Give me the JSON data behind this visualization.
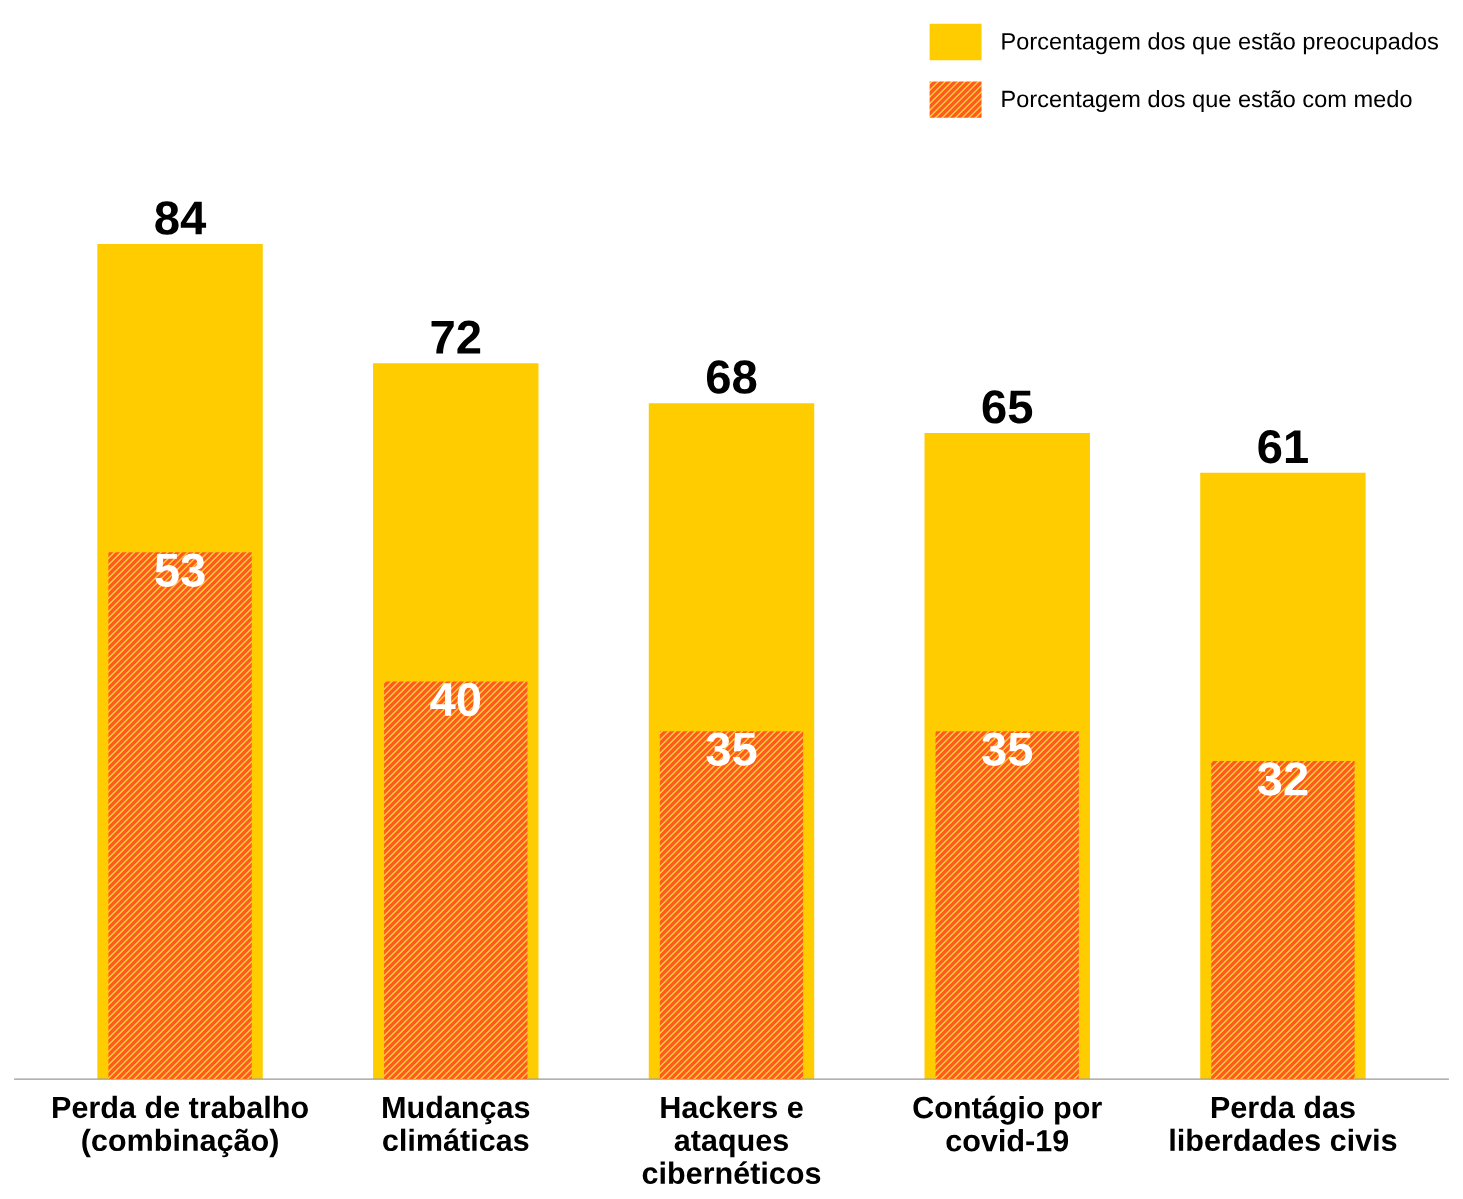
{
  "chart_data": {
    "type": "bar",
    "categories": [
      "Perda de trabalho\n(combinação)",
      "Mudanças\nclimáticas",
      "Hackers e\nataques\ncibernéticos",
      "Contágio por\ncovid-19",
      "Perda das\nliberdades civis"
    ],
    "series": [
      {
        "name": "Porcentagem dos que estão preocupados",
        "color": "#ffcc00",
        "values": [
          84,
          72,
          68,
          65,
          61
        ]
      },
      {
        "name": "Porcentagem dos que estão com medo",
        "color": "#ff5a1f",
        "values": [
          53,
          40,
          35,
          35,
          32
        ]
      }
    ],
    "data_labels": true,
    "legend": "top right",
    "tick_labels": "x",
    "grid": false
  }
}
